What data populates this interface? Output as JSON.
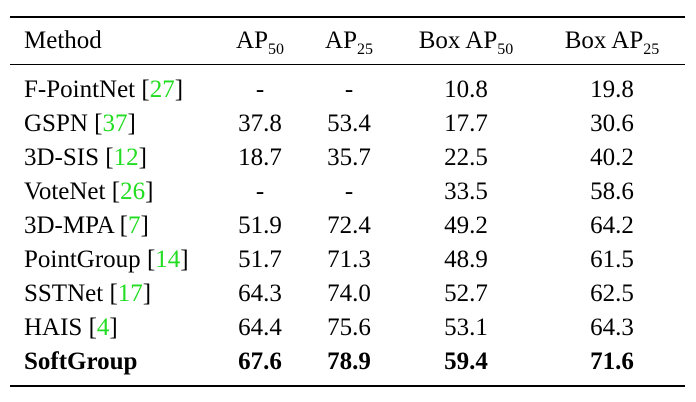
{
  "header": {
    "method": "Method",
    "cols": [
      {
        "base": "AP",
        "sub": "50"
      },
      {
        "base": "AP",
        "sub": "25"
      },
      {
        "base": "Box AP",
        "sub": "50"
      },
      {
        "base": "Box AP",
        "sub": "25"
      }
    ]
  },
  "rows": [
    {
      "method": "F-PointNet",
      "cite": "27",
      "values": [
        "-",
        "-",
        "10.8",
        "19.8"
      ]
    },
    {
      "method": "GSPN",
      "cite": "37",
      "values": [
        "37.8",
        "53.4",
        "17.7",
        "30.6"
      ]
    },
    {
      "method": "3D-SIS",
      "cite": "12",
      "values": [
        "18.7",
        "35.7",
        "22.5",
        "40.2"
      ]
    },
    {
      "method": "VoteNet",
      "cite": "26",
      "values": [
        "-",
        "-",
        "33.5",
        "58.6"
      ]
    },
    {
      "method": "3D-MPA",
      "cite": "7",
      "values": [
        "51.9",
        "72.4",
        "49.2",
        "64.2"
      ]
    },
    {
      "method": "PointGroup",
      "cite": "14",
      "values": [
        "51.7",
        "71.3",
        "48.9",
        "61.5"
      ]
    },
    {
      "method": "SSTNet",
      "cite": "17",
      "values": [
        "64.3",
        "74.0",
        "52.7",
        "62.5"
      ]
    },
    {
      "method": "HAIS",
      "cite": "4",
      "values": [
        "64.4",
        "75.6",
        "53.1",
        "64.3"
      ]
    },
    {
      "method": "SoftGroup",
      "cite": "",
      "values": [
        "67.6",
        "78.9",
        "59.4",
        "71.6"
      ]
    }
  ],
  "colors": {
    "citation": "#22dd22",
    "text": "#000000"
  }
}
